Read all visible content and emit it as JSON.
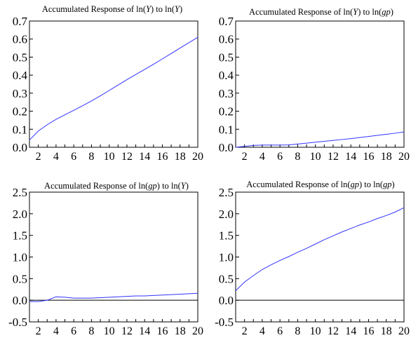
{
  "chart_data": [
    {
      "type": "line",
      "title_parts": [
        {
          "text": "Accumulated Response of ln(",
          "italic": false
        },
        {
          "text": "Y",
          "italic": true
        },
        {
          "text": ") to ln(",
          "italic": false
        },
        {
          "text": "Y",
          "italic": true
        },
        {
          "text": ")",
          "italic": false
        }
      ],
      "xlim": [
        1,
        20
      ],
      "ylim": [
        0,
        0.7
      ],
      "x_ticks": [
        2,
        4,
        6,
        8,
        10,
        12,
        14,
        16,
        18,
        20
      ],
      "y_ticks": [
        "0.0",
        "0.1",
        "0.2",
        "0.3",
        "0.4",
        "0.5",
        "0.6",
        "0.7"
      ],
      "zero_line": false,
      "line_color": "#3333ff",
      "series": [
        {
          "x": [
            1,
            2,
            3,
            4,
            5,
            6,
            7,
            8,
            9,
            10,
            11,
            12,
            13,
            14,
            15,
            16,
            17,
            18,
            19,
            20
          ],
          "values": [
            0.04,
            0.09,
            0.125,
            0.155,
            0.18,
            0.205,
            0.23,
            0.257,
            0.285,
            0.315,
            0.345,
            0.375,
            0.403,
            0.432,
            0.46,
            0.49,
            0.52,
            0.55,
            0.58,
            0.61
          ]
        }
      ]
    },
    {
      "type": "line",
      "title_parts": [
        {
          "text": "Accumulated Response of ln(",
          "italic": false
        },
        {
          "text": "Y",
          "italic": true
        },
        {
          "text": ") to ln(",
          "italic": false
        },
        {
          "text": "gp",
          "italic": true
        },
        {
          "text": ")",
          "italic": false
        }
      ],
      "xlim": [
        1,
        20
      ],
      "ylim": [
        0,
        0.7
      ],
      "x_ticks": [
        2,
        4,
        6,
        8,
        10,
        12,
        14,
        16,
        18,
        20
      ],
      "y_ticks": [
        "0.0",
        "0.1",
        "0.2",
        "0.3",
        "0.4",
        "0.5",
        "0.6",
        "0.7"
      ],
      "zero_line": false,
      "line_color": "#3333ff",
      "series": [
        {
          "x": [
            1,
            2,
            3,
            4,
            5,
            6,
            7,
            8,
            9,
            10,
            11,
            12,
            13,
            14,
            15,
            16,
            17,
            18,
            19,
            20
          ],
          "values": [
            0.0,
            0.005,
            0.01,
            0.012,
            0.012,
            0.012,
            0.013,
            0.018,
            0.023,
            0.028,
            0.033,
            0.038,
            0.043,
            0.048,
            0.054,
            0.06,
            0.066,
            0.072,
            0.078,
            0.085
          ]
        }
      ]
    },
    {
      "type": "line",
      "title_parts": [
        {
          "text": "Accumulated Response of ln(",
          "italic": false
        },
        {
          "text": "gp",
          "italic": true
        },
        {
          "text": ") to ln(",
          "italic": false
        },
        {
          "text": "Y",
          "italic": true
        },
        {
          "text": ")",
          "italic": false
        }
      ],
      "xlim": [
        1,
        20
      ],
      "ylim": [
        -0.5,
        2.5
      ],
      "x_ticks": [
        2,
        4,
        6,
        8,
        10,
        12,
        14,
        16,
        18,
        20
      ],
      "y_ticks": [
        "-0.5",
        "0.0",
        "0.5",
        "1.0",
        "1.5",
        "2.0",
        "2.5"
      ],
      "zero_line": true,
      "line_color": "#3333ff",
      "series": [
        {
          "x": [
            1,
            2,
            3,
            4,
            5,
            6,
            7,
            8,
            9,
            10,
            11,
            12,
            13,
            14,
            15,
            16,
            17,
            18,
            19,
            20
          ],
          "values": [
            -0.03,
            -0.03,
            0.0,
            0.08,
            0.07,
            0.05,
            0.05,
            0.05,
            0.06,
            0.07,
            0.08,
            0.09,
            0.1,
            0.1,
            0.11,
            0.12,
            0.13,
            0.14,
            0.15,
            0.16
          ]
        }
      ]
    },
    {
      "type": "line",
      "title_parts": [
        {
          "text": "Accumulated Response of ln(",
          "italic": false
        },
        {
          "text": "gp",
          "italic": true
        },
        {
          "text": ") to ln(",
          "italic": false
        },
        {
          "text": "gp",
          "italic": true
        },
        {
          "text": ")",
          "italic": false
        }
      ],
      "xlim": [
        1,
        20
      ],
      "ylim": [
        -0.5,
        2.5
      ],
      "x_ticks": [
        2,
        4,
        6,
        8,
        10,
        12,
        14,
        16,
        18,
        20
      ],
      "y_ticks": [
        "-0.5",
        "0.0",
        "0.5",
        "1.0",
        "1.5",
        "2.0",
        "2.5"
      ],
      "zero_line": true,
      "line_color": "#3333ff",
      "series": [
        {
          "x": [
            1,
            2,
            3,
            4,
            5,
            6,
            7,
            8,
            9,
            10,
            11,
            12,
            13,
            14,
            15,
            16,
            17,
            18,
            19,
            20
          ],
          "values": [
            0.22,
            0.42,
            0.57,
            0.71,
            0.82,
            0.92,
            1.01,
            1.11,
            1.2,
            1.3,
            1.4,
            1.49,
            1.58,
            1.66,
            1.74,
            1.81,
            1.89,
            1.96,
            2.04,
            2.14
          ]
        }
      ]
    }
  ]
}
